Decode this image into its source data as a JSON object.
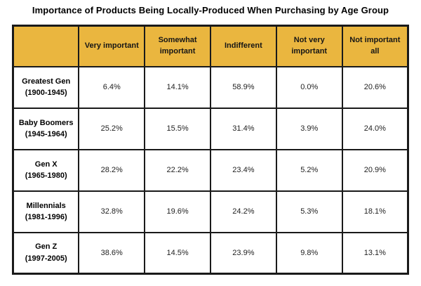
{
  "title": "Importance of Products Being Locally-Produced When Purchasing by Age Group",
  "colors": {
    "header_bg": "#EAB63F",
    "border": "#1A1A1A",
    "cell_bg": "#FFFFFF",
    "title_text": "#000000",
    "data_text": "#222222"
  },
  "table": {
    "columns": [
      "",
      "Very important",
      "Somewhat important",
      "Indifferent",
      "Not very important",
      "Not important all"
    ],
    "rows": [
      {
        "label": "Greatest Gen",
        "years": "(1900-1945)",
        "values": [
          "6.4%",
          "14.1%",
          "58.9%",
          "0.0%",
          "20.6%"
        ]
      },
      {
        "label": "Baby Boomers",
        "years": "(1945-1964)",
        "values": [
          "25.2%",
          "15.5%",
          "31.4%",
          "3.9%",
          "24.0%"
        ]
      },
      {
        "label": "Gen X",
        "years": "(1965-1980)",
        "values": [
          "28.2%",
          "22.2%",
          "23.4%",
          "5.2%",
          "20.9%"
        ]
      },
      {
        "label": "Millennials",
        "years": "(1981-1996)",
        "values": [
          "32.8%",
          "19.6%",
          "24.2%",
          "5.3%",
          "18.1%"
        ]
      },
      {
        "label": "Gen Z",
        "years": "(1997-2005)",
        "values": [
          "38.6%",
          "14.5%",
          "23.9%",
          "9.8%",
          "13.1%"
        ]
      }
    ]
  },
  "chart_data": {
    "type": "table",
    "title": "Importance of Products Being Locally-Produced When Purchasing by Age Group",
    "columns": [
      "Very important",
      "Somewhat important",
      "Indifferent",
      "Not very important",
      "Not important all"
    ],
    "categories": [
      "Greatest Gen (1900-1945)",
      "Baby Boomers (1945-1964)",
      "Gen X (1965-1980)",
      "Millennials (1981-1996)",
      "Gen Z (1997-2005)"
    ],
    "series": [
      {
        "name": "Greatest Gen (1900-1945)",
        "values": [
          6.4,
          14.1,
          58.9,
          0.0,
          20.6
        ]
      },
      {
        "name": "Baby Boomers (1945-1964)",
        "values": [
          25.2,
          15.5,
          31.4,
          3.9,
          24.0
        ]
      },
      {
        "name": "Gen X (1965-1980)",
        "values": [
          28.2,
          22.2,
          23.4,
          5.2,
          20.9
        ]
      },
      {
        "name": "Millennials (1981-1996)",
        "values": [
          32.8,
          19.6,
          24.2,
          5.3,
          18.1
        ]
      },
      {
        "name": "Gen Z (1997-2005)",
        "values": [
          38.6,
          14.5,
          23.9,
          9.8,
          13.1
        ]
      }
    ],
    "unit": "%"
  }
}
